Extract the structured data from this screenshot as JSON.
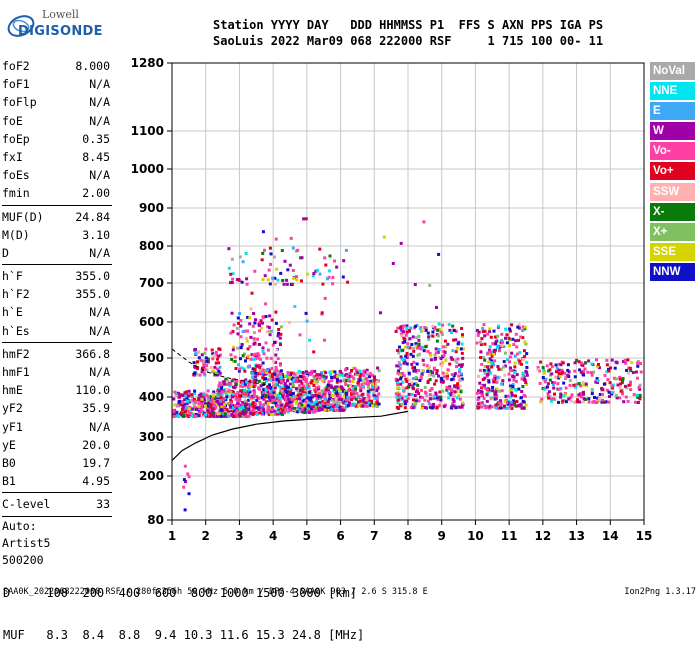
{
  "logo": {
    "top": "Lowell",
    "bottom": "DIGISONDE"
  },
  "header": {
    "line1": "Station YYYY DAY   DDD HHMMSS P1  FFS S AXN PPS IGA PS",
    "line2": "SaoLuis 2022 Mar09 068 222000 RSF     1 715 100 00- 11"
  },
  "params": [
    {
      "label": "foF2",
      "value": "8.000"
    },
    {
      "label": "foF1",
      "value": "N/A"
    },
    {
      "label": "foFlp",
      "value": "N/A"
    },
    {
      "label": "foE",
      "value": "N/A"
    },
    {
      "label": "foEp",
      "value": "0.35"
    },
    {
      "label": "fxI",
      "value": "8.45"
    },
    {
      "label": "foEs",
      "value": "N/A"
    },
    {
      "label": "fmin",
      "value": "2.00"
    },
    {
      "sep": true
    },
    {
      "label": "MUF(D)",
      "value": "24.84"
    },
    {
      "label": "M(D)",
      "value": "3.10"
    },
    {
      "label": "D",
      "value": "N/A"
    },
    {
      "sep": true
    },
    {
      "label": "h`F",
      "value": "355.0"
    },
    {
      "label": "h`F2",
      "value": "355.0"
    },
    {
      "label": "h`E",
      "value": "N/A"
    },
    {
      "label": "h`Es",
      "value": "N/A"
    },
    {
      "sep": true
    },
    {
      "label": "hmF2",
      "value": "366.8"
    },
    {
      "label": "hmF1",
      "value": "N/A"
    },
    {
      "label": "hmE",
      "value": "110.0"
    },
    {
      "label": "yF2",
      "value": "35.9"
    },
    {
      "label": "yF1",
      "value": "N/A"
    },
    {
      "label": "yE",
      "value": "20.0"
    },
    {
      "label": "B0",
      "value": "19.7"
    },
    {
      "label": "B1",
      "value": "4.95"
    },
    {
      "sep": true
    },
    {
      "label": "C-level",
      "value": "33"
    },
    {
      "sep": true
    },
    {
      "bare": "Auto:"
    },
    {
      "bare": "Artist5"
    },
    {
      "bare": "500200"
    }
  ],
  "legend": [
    {
      "label": "NoVal",
      "color": "#a9a9a9"
    },
    {
      "label": "NNE",
      "color": "#00e5ee"
    },
    {
      "label": "E",
      "color": "#3fa9f5"
    },
    {
      "label": "W",
      "color": "#a000a8"
    },
    {
      "label": "Vo-",
      "color": "#ff3fa4"
    },
    {
      "label": "Vo+",
      "color": "#e00020"
    },
    {
      "label": "SSW",
      "color": "#ffb0b0"
    },
    {
      "label": "X-",
      "color": "#0a7a0a"
    },
    {
      "label": "X+",
      "color": "#80c060"
    },
    {
      "label": "SSE",
      "color": "#d4d400"
    },
    {
      "label": "NNW",
      "color": "#1010c8"
    }
  ],
  "muf_table": {
    "line1": "D     100  200  400  600  800 1000 1500 3000 [km]",
    "line2": "MUF   8.3  8.4  8.8  9.4 10.3 11.6 15.3 24.8 [MHz]"
  },
  "footer": {
    "text": "SAA0K_2022068222000.RSF / 280fx256h 50 kHz 5.0 km / DPS-4 SAA0K 903 / 2.6 S 315.8 E",
    "version": "Ion2Png 1.3.17"
  },
  "chart_data": {
    "type": "scatter",
    "xlim": [
      1,
      15
    ],
    "ylim": [
      80,
      1280
    ],
    "x_ticks": [
      "1",
      "2",
      "3",
      "4",
      "5",
      "6",
      "7",
      "8",
      "9",
      "10",
      "11",
      "12",
      "13",
      "14",
      "15"
    ],
    "y_ticks": [
      "80",
      "200",
      "300",
      "400",
      "500",
      "600",
      "700",
      "800",
      "900",
      "1000",
      "1100",
      "1280"
    ],
    "y_tick_values": [
      80,
      200,
      300,
      400,
      500,
      600,
      700,
      800,
      900,
      1000,
      1100,
      1280
    ],
    "y_scale": "nonlinear",
    "grid": true,
    "profile_curve": {
      "x": [
        1.0,
        1.3,
        1.7,
        2.2,
        2.8,
        3.5,
        4.3,
        5.2,
        6.2,
        7.2,
        8.0
      ],
      "y": [
        240,
        265,
        285,
        305,
        320,
        332,
        340,
        345,
        348,
        352,
        364
      ]
    },
    "dashed_curve": {
      "x": [
        1.0,
        1.5,
        2.0,
        2.6,
        3.2,
        3.9
      ],
      "y": [
        525,
        490,
        465,
        450,
        440,
        430
      ]
    },
    "echo_clusters": [
      {
        "x": [
          1.0,
          2.3
        ],
        "y": [
          355,
          420
        ],
        "n": 260
      },
      {
        "x": [
          2.3,
          3.3
        ],
        "y": [
          355,
          450
        ],
        "n": 300
      },
      {
        "x": [
          3.3,
          4.3
        ],
        "y": [
          360,
          470
        ],
        "n": 300
      },
      {
        "x": [
          4.3,
          5.3
        ],
        "y": [
          365,
          470
        ],
        "n": 300
      },
      {
        "x": [
          5.3,
          6.1
        ],
        "y": [
          370,
          470
        ],
        "n": 220
      },
      {
        "x": [
          6.1,
          7.1
        ],
        "y": [
          380,
          480
        ],
        "n": 200
      },
      {
        "x": [
          7.6,
          9.6
        ],
        "y": [
          375,
          600
        ],
        "n": 420
      },
      {
        "x": [
          10.0,
          11.5
        ],
        "y": [
          375,
          600
        ],
        "n": 320
      },
      {
        "x": [
          11.8,
          14.9
        ],
        "y": [
          390,
          500
        ],
        "n": 260
      },
      {
        "x": [
          2.7,
          4.2
        ],
        "y": [
          470,
          630
        ],
        "n": 140
      },
      {
        "x": [
          1.6,
          2.4
        ],
        "y": [
          460,
          530
        ],
        "n": 70
      },
      {
        "x": [
          2.6,
          5.8
        ],
        "y": [
          700,
          800
        ],
        "n": 70
      },
      {
        "x": [
          2.6,
          9.0
        ],
        "y": [
          520,
          880
        ],
        "n": 45
      },
      {
        "x": [
          1.3,
          1.5
        ],
        "y": [
          110,
          250
        ],
        "n": 8
      }
    ]
  }
}
